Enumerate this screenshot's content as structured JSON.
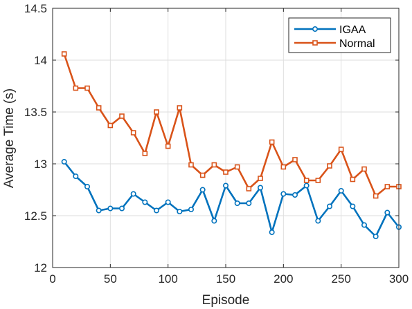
{
  "chart_data": {
    "type": "line",
    "title": "",
    "xlabel": "Episode",
    "ylabel": "Average Time (s)",
    "xlim": [
      0,
      300
    ],
    "ylim": [
      12,
      14.5
    ],
    "xticks": [
      0,
      50,
      100,
      150,
      200,
      250,
      300
    ],
    "yticks": [
      12,
      12.5,
      13,
      13.5,
      14,
      14.5
    ],
    "xtick_labels": [
      "0",
      "50",
      "100",
      "150",
      "200",
      "250",
      "300"
    ],
    "ytick_labels": [
      "12",
      "12.5",
      "13",
      "13.5",
      "14",
      "14.5"
    ],
    "grid": true,
    "legend_position": "top-right",
    "x": [
      10,
      20,
      30,
      40,
      50,
      60,
      70,
      80,
      90,
      100,
      110,
      120,
      130,
      140,
      150,
      160,
      170,
      180,
      190,
      200,
      210,
      220,
      230,
      240,
      250,
      260,
      270,
      280,
      290,
      300
    ],
    "series": [
      {
        "name": "IGAA",
        "color": "#0072BD",
        "marker": "circle",
        "values": [
          13.02,
          12.88,
          12.78,
          12.55,
          12.57,
          12.57,
          12.71,
          12.63,
          12.55,
          12.63,
          12.54,
          12.56,
          12.75,
          12.45,
          12.79,
          12.62,
          12.62,
          12.77,
          12.34,
          12.71,
          12.7,
          12.79,
          12.45,
          12.59,
          12.74,
          12.59,
          12.41,
          12.3,
          12.53,
          12.39
        ]
      },
      {
        "name": "Normal",
        "color": "#D95319",
        "marker": "square",
        "values": [
          14.06,
          13.73,
          13.73,
          13.54,
          13.37,
          13.46,
          13.3,
          13.1,
          13.5,
          13.17,
          13.54,
          12.99,
          12.89,
          12.99,
          12.92,
          12.97,
          12.76,
          12.86,
          13.21,
          12.97,
          13.04,
          12.84,
          12.84,
          12.98,
          13.14,
          12.85,
          12.95,
          12.69,
          12.78,
          12.78
        ]
      }
    ]
  }
}
